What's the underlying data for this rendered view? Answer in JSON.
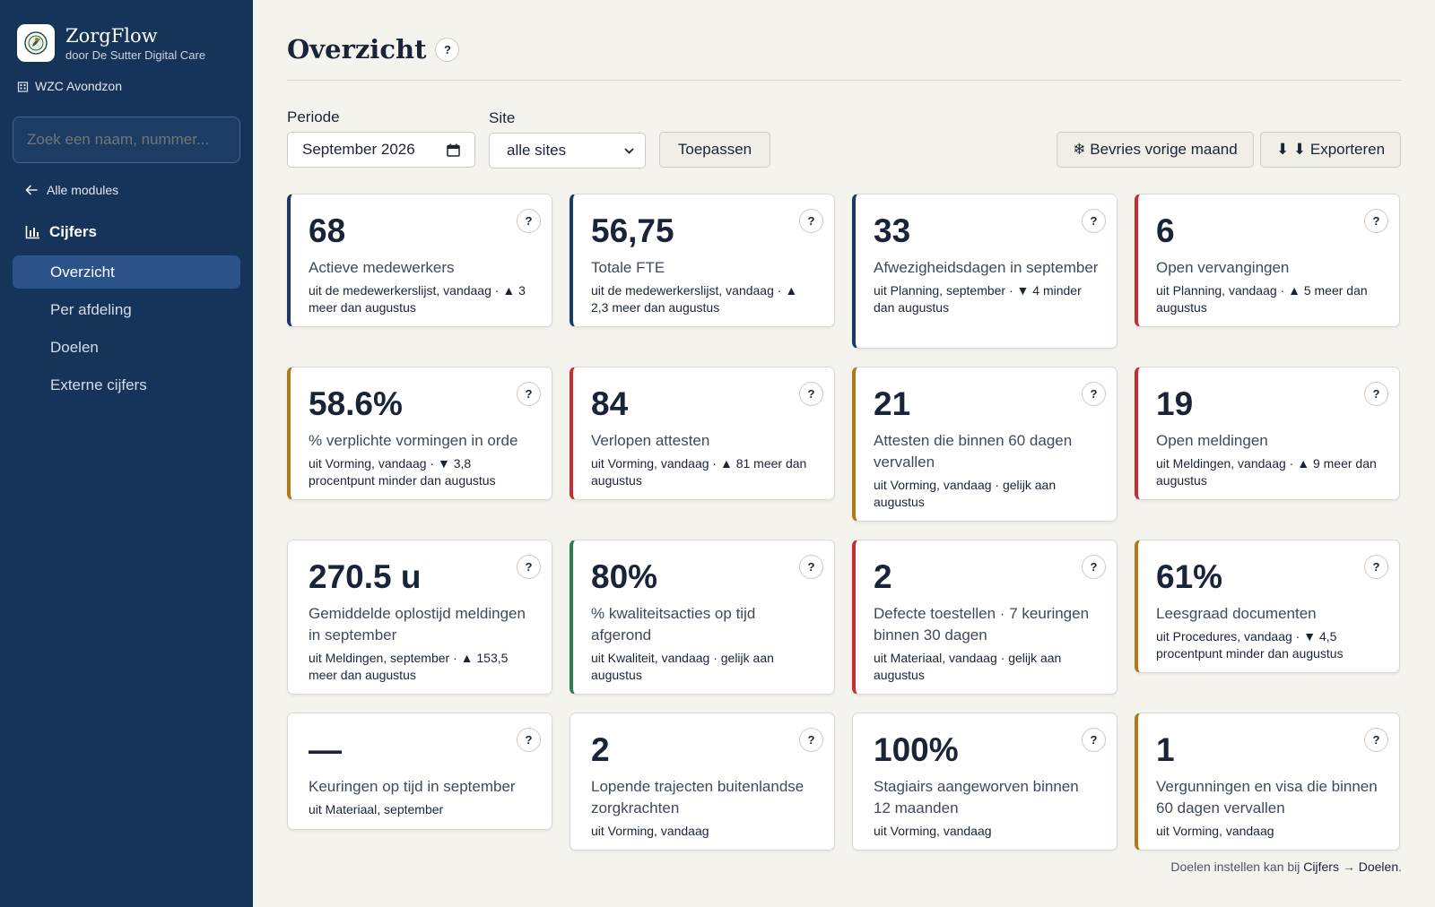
{
  "brand": {
    "name": "ZorgFlow",
    "subtitle": "door De Sutter Digital Care"
  },
  "org": {
    "name": "WZC Avondzon"
  },
  "search": {
    "placeholder": "Zoek een naam, nummer..."
  },
  "nav": {
    "back_label": "Alle modules",
    "section_label": "Cijfers",
    "items": [
      {
        "label": "Overzicht",
        "active": true
      },
      {
        "label": "Per afdeling",
        "active": false
      },
      {
        "label": "Doelen",
        "active": false
      },
      {
        "label": "Externe cijfers",
        "active": false
      }
    ]
  },
  "page": {
    "title": "Overzicht",
    "help": "?"
  },
  "filters": {
    "period_label": "Periode",
    "period_value": "September 2026",
    "site_label": "Site",
    "site_value": "alle sites",
    "apply_label": "Toepassen",
    "freeze_label": "❄ Bevries vorige maand",
    "export_label": "⬇ ⬇ Exporteren"
  },
  "colors": {
    "navy": "#1d3a63",
    "red": "#c62f2f",
    "amber": "#b07a1a",
    "green": "#2f7d4f",
    "sidebar": "#163459",
    "active_nav": "#2b5389"
  },
  "cards": [
    {
      "value": "68",
      "label": "Actieve medewerkers",
      "meta": "uit de medewerkerslijst, vandaag · ▲ 3 meer dan augustus",
      "color": "navy"
    },
    {
      "value": "56,75",
      "label": "Totale FTE",
      "meta": "uit de medewerkerslijst, vandaag · ▲ 2,3 meer dan augustus",
      "color": "navy"
    },
    {
      "value": "33",
      "label": "Afwezigheidsdagen in september",
      "meta": "uit Planning, september · ▼ 4 minder dan augustus",
      "color": "navy"
    },
    {
      "value": "6",
      "label": "Open vervangingen",
      "meta": "uit Planning, vandaag · ▲ 5 meer dan augustus",
      "color": "red"
    },
    {
      "value": "58.6%",
      "label": "% verplichte vormingen in orde",
      "meta": "uit Vorming, vandaag · ▼ 3,8 procentpunt minder dan augustus",
      "color": "amber"
    },
    {
      "value": "84",
      "label": "Verlopen attesten",
      "meta": "uit Vorming, vandaag · ▲ 81 meer dan augustus",
      "color": "red"
    },
    {
      "value": "21",
      "label": "Attesten die binnen 60 dagen vervallen",
      "meta": "uit Vorming, vandaag · gelijk aan augustus",
      "color": "amber"
    },
    {
      "value": "19",
      "label": "Open meldingen",
      "meta": "uit Meldingen, vandaag · ▲ 9 meer dan augustus",
      "color": "red"
    },
    {
      "value": "270.5 u",
      "label": "Gemiddelde oplostijd meldingen in september",
      "meta": "uit Meldingen, september · ▲ 153,5 meer dan augustus",
      "color": "none"
    },
    {
      "value": "80%",
      "label": "% kwaliteitsacties op tijd afgerond",
      "meta": "uit Kwaliteit, vandaag · gelijk aan augustus",
      "color": "green"
    },
    {
      "value": "2",
      "label": "Defecte toestellen · 7 keuringen binnen 30 dagen",
      "meta": "uit Materiaal, vandaag · gelijk aan augustus",
      "color": "red"
    },
    {
      "value": "61%",
      "label": "Leesgraad documenten",
      "meta": "uit Procedures, vandaag · ▼ 4,5 procentpunt minder dan augustus",
      "color": "amber"
    },
    {
      "value": "—",
      "label": "Keuringen op tijd in september",
      "meta": "uit Materiaal, september",
      "color": "none"
    },
    {
      "value": "2",
      "label": "Lopende trajecten buitenlandse zorgkrachten",
      "meta": "uit Vorming, vandaag",
      "color": "none"
    },
    {
      "value": "100%",
      "label": "Stagiairs aangeworven binnen 12 maanden",
      "meta": "uit Vorming, vandaag",
      "color": "none"
    },
    {
      "value": "1",
      "label": "Vergunningen en visa die binnen 60 dagen vervallen",
      "meta": "uit Vorming, vandaag",
      "color": "amber"
    }
  ],
  "footer": {
    "text": "Doelen instellen kan bij ",
    "link1": "Cijfers",
    "arrow": " → ",
    "link2": "Doelen",
    "end": "."
  }
}
